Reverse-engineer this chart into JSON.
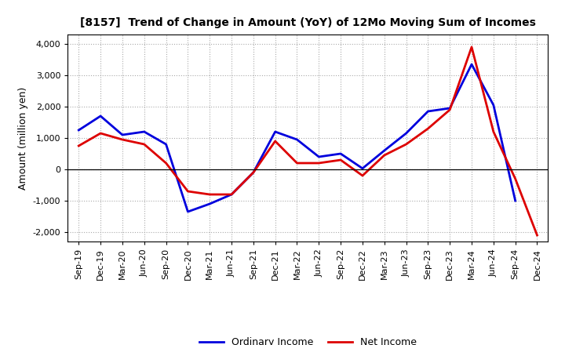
{
  "title": "[8157]  Trend of Change in Amount (YoY) of 12Mo Moving Sum of Incomes",
  "ylabel": "Amount (million yen)",
  "x_labels": [
    "Sep-19",
    "Dec-19",
    "Mar-20",
    "Jun-20",
    "Sep-20",
    "Dec-20",
    "Mar-21",
    "Jun-21",
    "Sep-21",
    "Dec-21",
    "Mar-22",
    "Jun-22",
    "Sep-22",
    "Dec-22",
    "Mar-23",
    "Jun-23",
    "Sep-23",
    "Dec-23",
    "Mar-24",
    "Jun-24",
    "Sep-24",
    "Dec-24"
  ],
  "ordinary_income": [
    1250,
    1700,
    1100,
    1200,
    800,
    -1350,
    -1100,
    -800,
    -100,
    1200,
    950,
    400,
    500,
    30,
    600,
    1150,
    1850,
    1950,
    3350,
    2050,
    -1000,
    null
  ],
  "net_income": [
    750,
    1150,
    950,
    800,
    200,
    -700,
    -800,
    -800,
    -100,
    900,
    200,
    200,
    300,
    -200,
    450,
    800,
    1300,
    1900,
    3900,
    1200,
    -300,
    -2100
  ],
  "ordinary_income_color": "#0000dd",
  "net_income_color": "#dd0000",
  "ylim": [
    -2300,
    4300
  ],
  "yticks": [
    -2000,
    -1000,
    0,
    1000,
    2000,
    3000,
    4000
  ],
  "background_color": "#ffffff",
  "grid_color": "#aaaaaa",
  "legend_labels": [
    "Ordinary Income",
    "Net Income"
  ]
}
